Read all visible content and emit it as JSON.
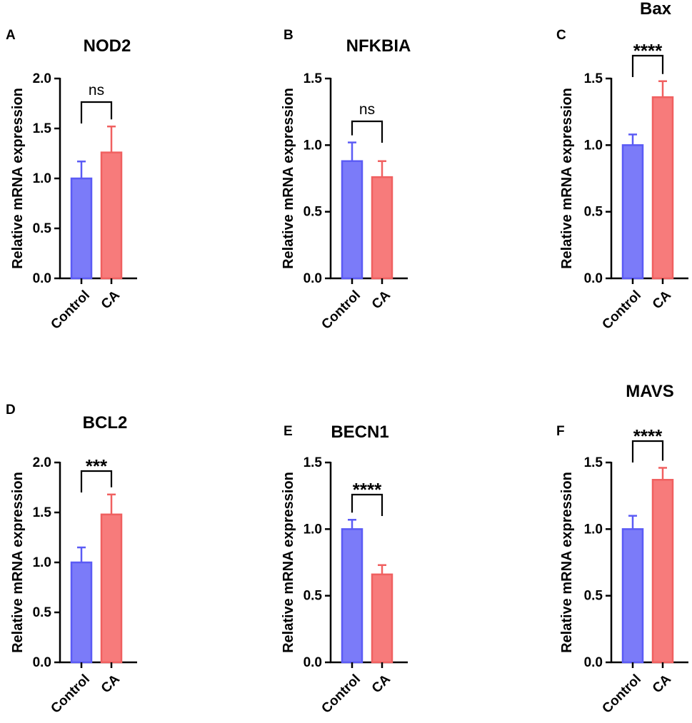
{
  "figure": {
    "colors": {
      "control": "#7B7BF9",
      "ca": "#F77B7B",
      "control_stroke": "#5B5BF5",
      "ca_stroke": "#F06060"
    }
  },
  "chart_data": [
    {
      "panel": "A",
      "type": "bar",
      "title": "NOD2",
      "ylabel": "Relative mRNA expression",
      "xlabel": "",
      "categories": [
        "Control",
        "CA"
      ],
      "values": [
        1.0,
        1.26
      ],
      "errors": [
        0.17,
        0.26
      ],
      "ylim": [
        0,
        2.0
      ],
      "yticks": [
        "0.0",
        "0.5",
        "1.0",
        "1.5",
        "2.0"
      ],
      "significance": "ns"
    },
    {
      "panel": "B",
      "type": "bar",
      "title": "NFKBIA",
      "ylabel": "Relative mRNA expression",
      "xlabel": "",
      "categories": [
        "Control",
        "CA"
      ],
      "values": [
        0.88,
        0.76
      ],
      "errors": [
        0.14,
        0.12
      ],
      "ylim": [
        0,
        1.5
      ],
      "yticks": [
        "0.0",
        "0.5",
        "1.0",
        "1.5"
      ],
      "significance": "ns"
    },
    {
      "panel": "C",
      "type": "bar",
      "title": "Bax",
      "ylabel": "Relative mRNA expression",
      "xlabel": "",
      "categories": [
        "Control",
        "CA"
      ],
      "values": [
        1.0,
        1.36
      ],
      "errors": [
        0.08,
        0.12
      ],
      "ylim": [
        0,
        1.5
      ],
      "yticks": [
        "0.0",
        "0.5",
        "1.0",
        "1.5"
      ],
      "significance": "****"
    },
    {
      "panel": "D",
      "type": "bar",
      "title": "BCL2",
      "ylabel": "Relative mRNA expression",
      "xlabel": "",
      "categories": [
        "Control",
        "CA"
      ],
      "values": [
        1.0,
        1.48
      ],
      "errors": [
        0.15,
        0.2
      ],
      "ylim": [
        0,
        2.0
      ],
      "yticks": [
        "0.0",
        "0.5",
        "1.0",
        "1.5",
        "2.0"
      ],
      "significance": "***"
    },
    {
      "panel": "E",
      "type": "bar",
      "title": "BECN1",
      "ylabel": "Relative mRNA expression",
      "xlabel": "",
      "categories": [
        "Control",
        "CA"
      ],
      "values": [
        1.0,
        0.66
      ],
      "errors": [
        0.07,
        0.07
      ],
      "ylim": [
        0,
        1.5
      ],
      "yticks": [
        "0.0",
        "0.5",
        "1.0",
        "1.5"
      ],
      "significance": "****"
    },
    {
      "panel": "F",
      "type": "bar",
      "title": "MAVS",
      "ylabel": "Relative mRNA expression",
      "xlabel": "",
      "categories": [
        "Control",
        "CA"
      ],
      "values": [
        1.0,
        1.37
      ],
      "errors": [
        0.1,
        0.09
      ],
      "ylim": [
        0,
        1.5
      ],
      "yticks": [
        "0.0",
        "0.5",
        "1.0",
        "1.5"
      ],
      "significance": "****"
    }
  ]
}
